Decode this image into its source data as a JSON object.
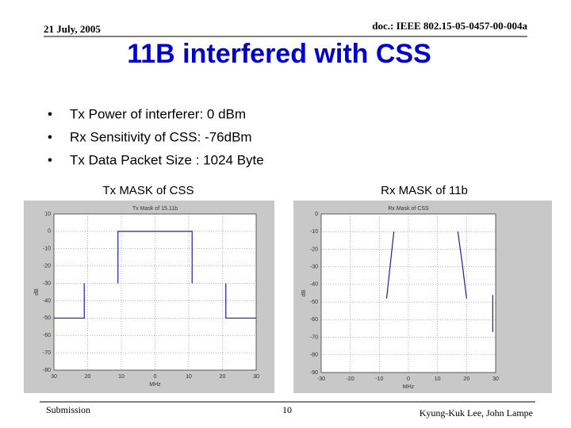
{
  "slide": {
    "date": "21 July, 2005",
    "doc": "doc.: IEEE 802.15-05-0457-00-004a",
    "title": "11B interfered with CSS",
    "bullets": [
      "Tx Power of interferer: 0 dBm",
      "Rx Sensitivity of CSS: -76dBm",
      "Tx Data Packet Size : 1024 Byte"
    ],
    "captions": [
      "Tx MASK of CSS",
      "Rx MASK of 11b"
    ],
    "footer": {
      "left": "Submission",
      "page": "10",
      "authors": "Kyung-Kuk Lee, John Lampe"
    }
  },
  "chart_data": [
    {
      "type": "line",
      "title": "Tx Mask of 15.11b",
      "xlabel": "MHz",
      "ylabel": "dB",
      "xlim": [
        -30,
        30
      ],
      "ylim": [
        -80,
        10
      ],
      "xticks": [
        {
          "value": -30,
          "label": "30"
        },
        {
          "value": -20,
          "label": "20"
        },
        {
          "value": -10,
          "label": "10"
        },
        0,
        10,
        20,
        30
      ],
      "yticks": [
        10,
        0,
        -10,
        -20,
        -30,
        -40,
        -50,
        -60,
        -70,
        -80
      ],
      "grid": true,
      "series": [
        {
          "color": "#1f1f9a",
          "x": [
            -30,
            -21,
            -21,
            null,
            -11,
            -11,
            11,
            11,
            null,
            21,
            21,
            30
          ],
          "values": [
            -50,
            -50,
            -30,
            null,
            -30,
            0,
            0,
            -30,
            null,
            -30,
            -50,
            -50
          ]
        }
      ]
    },
    {
      "type": "line",
      "title": "Rx Mask of CSS",
      "xlabel": "MHz",
      "ylabel": "dB",
      "xlim": [
        -30,
        30
      ],
      "ylim": [
        -90,
        0
      ],
      "xticks": [
        -30,
        -20,
        -10,
        0,
        10,
        20,
        30
      ],
      "yticks": [
        0,
        -10,
        -20,
        -30,
        -40,
        -50,
        -60,
        -70,
        -80,
        -90
      ],
      "grid": true,
      "series": [
        {
          "color": "#1f1f9a",
          "x": [
            -5,
            -6,
            -7.5,
            null,
            17,
            18.5,
            20,
            null,
            29,
            29
          ],
          "values": [
            -10,
            -25,
            -48,
            null,
            -10,
            -28,
            -48,
            null,
            -46,
            -67
          ]
        }
      ]
    }
  ]
}
